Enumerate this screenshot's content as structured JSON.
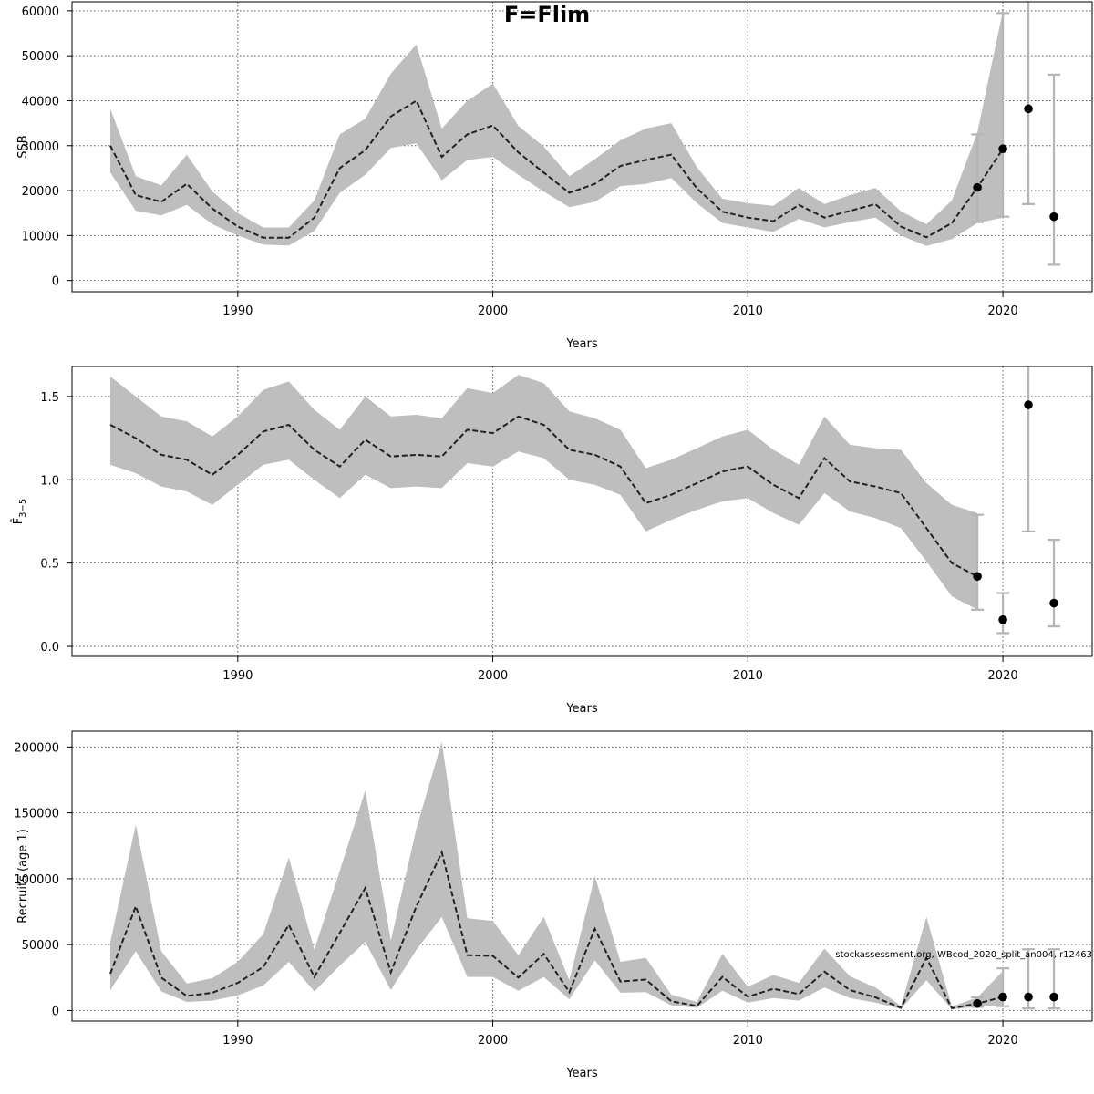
{
  "figure": {
    "title": "F=Flim"
  },
  "annotation": "stockassessment.org, WBcod_2020_split_an004, r12463",
  "colors": {
    "band": "#bebebe",
    "line": "#222222",
    "errorbar": "#b5b5b5",
    "point": "#000000"
  },
  "chart_data": [
    {
      "type": "line",
      "name": "ssb",
      "title": "",
      "xlabel": "Years",
      "ylabel": "SSB",
      "xlim": [
        1983.5,
        2023.5
      ],
      "ylim": [
        -2500,
        62000
      ],
      "grid": true,
      "xticks": [
        1990,
        2000,
        2010,
        2020
      ],
      "yticks": [
        0,
        10000,
        20000,
        30000,
        40000,
        50000,
        60000
      ],
      "ytick_labels": [
        "0",
        "10000",
        "20000",
        "30000",
        "40000",
        "50000",
        "60000"
      ],
      "x": [
        1985,
        1986,
        1987,
        1988,
        1989,
        1990,
        1991,
        1992,
        1993,
        1994,
        1995,
        1996,
        1997,
        1998,
        1999,
        2000,
        2001,
        2002,
        2003,
        2004,
        2005,
        2006,
        2007,
        2008,
        2009,
        2010,
        2011,
        2012,
        2013,
        2014,
        2015,
        2016,
        2017,
        2018,
        2019,
        2020
      ],
      "estimate": [
        30000,
        19000,
        17500,
        21500,
        16000,
        12000,
        9500,
        9500,
        14000,
        25000,
        29000,
        36500,
        40000,
        27500,
        32500,
        34500,
        28500,
        24000,
        19500,
        21500,
        25500,
        26800,
        28000,
        20500,
        15300,
        14000,
        13200,
        16800,
        14000,
        15500,
        17000,
        12000,
        9600,
        12800,
        20700,
        29300
      ],
      "lower": [
        24000,
        15500,
        14500,
        16800,
        12500,
        10000,
        8000,
        7800,
        11000,
        19500,
        23500,
        29500,
        30500,
        22300,
        26800,
        27500,
        23500,
        19800,
        16300,
        17500,
        21000,
        21500,
        22800,
        17200,
        12800,
        11800,
        10800,
        13700,
        11800,
        13000,
        14000,
        10000,
        7700,
        9200,
        12800,
        14000
      ],
      "upper": [
        38200,
        23200,
        21200,
        28000,
        19800,
        15000,
        11800,
        11800,
        17800,
        32500,
        36000,
        46000,
        52500,
        33800,
        40000,
        43800,
        34400,
        29800,
        23200,
        27000,
        31200,
        33800,
        35000,
        25200,
        18200,
        17200,
        16600,
        20600,
        17000,
        19000,
        20600,
        15400,
        12500,
        17800,
        33000,
        60000
      ],
      "forecast_x": [
        2019,
        2020,
        2021,
        2022
      ],
      "forecast_est": [
        20700,
        29300,
        38200,
        14200
      ],
      "forecast_low": [
        13000,
        14200,
        17000,
        3500
      ],
      "forecast_high": [
        32500,
        59500,
        65000,
        45800
      ]
    },
    {
      "type": "line",
      "name": "fbar",
      "title": "",
      "xlabel": "Years",
      "ylabel": "F̄",
      "ylabel_sub": "3−5",
      "xlim": [
        1983.5,
        2023.5
      ],
      "ylim": [
        -0.06,
        1.68
      ],
      "grid": true,
      "xticks": [
        1990,
        2000,
        2010,
        2020
      ],
      "yticks": [
        0,
        0.5,
        1,
        1.5
      ],
      "ytick_labels": [
        "0.0",
        "0.5",
        "1.0",
        "1.5"
      ],
      "x": [
        1985,
        1986,
        1987,
        1988,
        1989,
        1990,
        1991,
        1992,
        1993,
        1994,
        1995,
        1996,
        1997,
        1998,
        1999,
        2000,
        2001,
        2002,
        2003,
        2004,
        2005,
        2006,
        2007,
        2008,
        2009,
        2010,
        2011,
        2012,
        2013,
        2014,
        2015,
        2016,
        2017,
        2018,
        2019
      ],
      "estimate": [
        1.33,
        1.25,
        1.15,
        1.12,
        1.03,
        1.15,
        1.29,
        1.33,
        1.18,
        1.08,
        1.24,
        1.14,
        1.15,
        1.14,
        1.3,
        1.28,
        1.38,
        1.33,
        1.18,
        1.15,
        1.08,
        0.86,
        0.91,
        0.98,
        1.05,
        1.08,
        0.97,
        0.89,
        1.13,
        0.99,
        0.96,
        0.92,
        0.71,
        0.5,
        0.42
      ],
      "lower": [
        1.09,
        1.04,
        0.96,
        0.93,
        0.85,
        0.97,
        1.09,
        1.12,
        1.0,
        0.89,
        1.03,
        0.95,
        0.96,
        0.95,
        1.1,
        1.08,
        1.17,
        1.13,
        1.0,
        0.97,
        0.91,
        0.69,
        0.76,
        0.82,
        0.87,
        0.89,
        0.8,
        0.73,
        0.92,
        0.81,
        0.77,
        0.71,
        0.51,
        0.3,
        0.22
      ],
      "upper": [
        1.62,
        1.5,
        1.38,
        1.35,
        1.26,
        1.38,
        1.54,
        1.59,
        1.42,
        1.3,
        1.5,
        1.38,
        1.39,
        1.37,
        1.55,
        1.52,
        1.63,
        1.58,
        1.41,
        1.37,
        1.3,
        1.07,
        1.12,
        1.19,
        1.26,
        1.3,
        1.18,
        1.09,
        1.38,
        1.21,
        1.19,
        1.18,
        0.98,
        0.85,
        0.8
      ],
      "forecast_x": [
        2019,
        2020,
        2021,
        2022
      ],
      "forecast_est": [
        0.42,
        0.16,
        1.45,
        0.26
      ],
      "forecast_low": [
        0.22,
        0.08,
        0.69,
        0.12
      ],
      "forecast_high": [
        0.79,
        0.32,
        1.72,
        0.64
      ]
    },
    {
      "type": "line",
      "name": "recruits",
      "title": "",
      "xlabel": "Years",
      "ylabel": "Recruits (age 1)",
      "xlim": [
        1983.5,
        2023.5
      ],
      "ylim": [
        -8000,
        212000
      ],
      "grid": true,
      "xticks": [
        1990,
        2000,
        2010,
        2020
      ],
      "yticks": [
        0,
        50000,
        100000,
        150000,
        200000
      ],
      "ytick_labels": [
        "0",
        "50000",
        "100000",
        "150000",
        "200000"
      ],
      "x": [
        1985,
        1986,
        1987,
        1988,
        1989,
        1990,
        1991,
        1992,
        1993,
        1994,
        1995,
        1996,
        1997,
        1998,
        1999,
        2000,
        2001,
        2002,
        2003,
        2004,
        2005,
        2006,
        2007,
        2008,
        2009,
        2010,
        2011,
        2012,
        2013,
        2014,
        2015,
        2016,
        2017,
        2018,
        2019,
        2020
      ],
      "estimate": [
        28000,
        79000,
        25000,
        11000,
        13500,
        21000,
        33000,
        65000,
        25500,
        59000,
        93000,
        29000,
        79000,
        120000,
        42000,
        41500,
        25000,
        43000,
        14000,
        62000,
        22000,
        23500,
        7000,
        3500,
        25500,
        10500,
        16500,
        12500,
        29500,
        15500,
        10000,
        2000,
        40000,
        1700,
        5300,
        10300
      ],
      "lower": [
        15500,
        45000,
        14500,
        6500,
        7500,
        11500,
        19000,
        37000,
        14500,
        34000,
        52000,
        15500,
        46000,
        71000,
        25500,
        25500,
        15000,
        25500,
        8500,
        38000,
        13500,
        14000,
        4000,
        2000,
        15000,
        6000,
        9500,
        7500,
        17500,
        9500,
        6000,
        1200,
        23000,
        1000,
        2800,
        4000
      ],
      "upper": [
        52000,
        141000,
        45000,
        20500,
        24500,
        37000,
        58000,
        116000,
        46000,
        106000,
        167000,
        53000,
        138000,
        204000,
        70000,
        68000,
        42000,
        71000,
        23000,
        102000,
        37000,
        40000,
        12000,
        6500,
        43000,
        18000,
        27000,
        21000,
        47000,
        26000,
        17500,
        3500,
        71000,
        3000,
        10000,
        30000
      ],
      "forecast_x": [
        2019,
        2020,
        2021,
        2022
      ],
      "forecast_est": [
        5300,
        10300,
        10300,
        10300
      ],
      "forecast_low": [
        2800,
        3300,
        1600,
        1600
      ],
      "forecast_high": [
        10000,
        32000,
        46500,
        46500
      ]
    }
  ]
}
